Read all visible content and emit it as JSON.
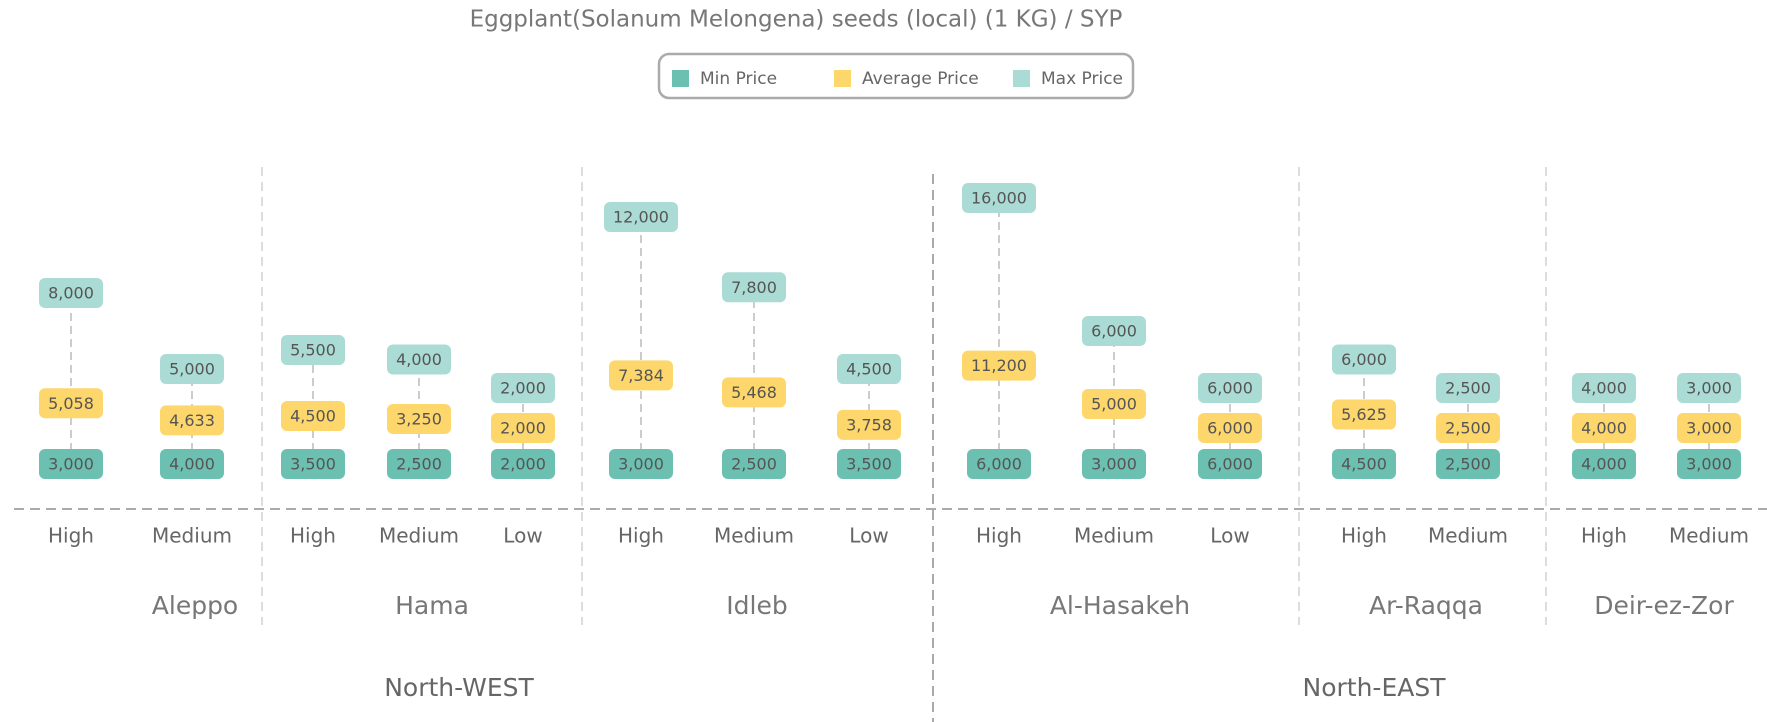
{
  "chart_data": {
    "type": "dot-range",
    "title": "Eggplant(Solanum Melongena) seeds (local) (1 KG) / SYP",
    "categories": [
      "High",
      "Medium",
      "High",
      "Medium",
      "Low",
      "High",
      "Medium",
      "Low",
      "High",
      "Medium",
      "Low",
      "High",
      "Medium",
      "High",
      "Medium"
    ],
    "provinces": [
      {
        "name": "Aleppo",
        "count": 2
      },
      {
        "name": "Hama",
        "count": 3
      },
      {
        "name": "Idleb",
        "count": 3
      },
      {
        "name": "Al-Hasakeh",
        "count": 3
      },
      {
        "name": "Ar-Raqqa",
        "count": 2
      },
      {
        "name": "Deir-ez-Zor",
        "count": 2
      }
    ],
    "regions": [
      {
        "name": "North-WEST",
        "count": 3
      },
      {
        "name": "North-EAST",
        "count": 3
      }
    ],
    "series": [
      {
        "name": "Min Price",
        "color": "#6cc0b1",
        "values": [
          3000,
          4000,
          3500,
          2500,
          2000,
          3000,
          2500,
          3500,
          6000,
          3000,
          6000,
          4500,
          2500,
          4000,
          3000
        ],
        "value_labels": [
          "3,000",
          "4,000",
          "3,500",
          "2,500",
          "2,000",
          "3,000",
          "2,500",
          "3,500",
          "6,000",
          "3,000",
          "6,000",
          "4,500",
          "2,500",
          "4,000",
          "3,000"
        ]
      },
      {
        "name": "Average Price",
        "color": "#fdd66c",
        "values": [
          5058,
          4633,
          4500,
          3250,
          2000,
          7384,
          5468,
          3758,
          11200,
          5000,
          6000,
          5625,
          2500,
          4000,
          3000
        ],
        "value_labels": [
          "5,058",
          "4,633",
          "4,500",
          "3,250",
          "2,000",
          "7,384",
          "5,468",
          "3,758",
          "11,200",
          "5,000",
          "6,000",
          "5,625",
          "2,500",
          "4,000",
          "3,000"
        ]
      },
      {
        "name": "Max Price",
        "color": "#aadcd5",
        "values": [
          8000,
          5000,
          5500,
          4000,
          2000,
          12000,
          7800,
          4500,
          16000,
          6000,
          6000,
          6000,
          2500,
          4000,
          3000
        ],
        "value_labels": [
          "8,000",
          "5,000",
          "5,500",
          "4,000",
          "2,000",
          "12,000",
          "7,800",
          "4,500",
          "16,000",
          "6,000",
          "6,000",
          "6,000",
          "2,500",
          "4,000",
          "3,000"
        ]
      }
    ]
  }
}
